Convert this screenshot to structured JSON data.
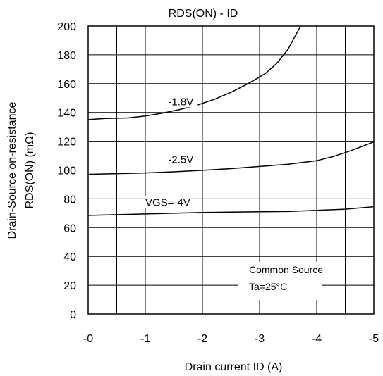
{
  "chart_data": {
    "type": "line",
    "title": "RDS(ON) - ID",
    "xlabel": "Drain current ID (A)",
    "ylabel_line1": "Drain-Source on-resistance",
    "ylabel_line2": "RDS(ON) (mΩ)",
    "xlim": [
      0,
      -5
    ],
    "ylim": [
      0,
      200
    ],
    "x_ticks": [
      0,
      -0.5,
      -1,
      -1.5,
      -2,
      -2.5,
      -3,
      -3.5,
      -4,
      -4.5,
      -5
    ],
    "x_tick_labels": [
      "-0",
      "",
      "-1",
      "",
      "-2",
      "",
      "-3",
      "",
      "-4",
      "",
      "-5"
    ],
    "y_ticks": [
      0,
      20,
      40,
      60,
      80,
      100,
      120,
      140,
      160,
      180,
      200
    ],
    "y_tick_labels": [
      "0",
      "20",
      "40",
      "60",
      "80",
      "100",
      "120",
      "140",
      "160",
      "180",
      "200"
    ],
    "grid": true,
    "series": [
      {
        "name": "-1.8V",
        "label_at": [
          -1.4,
          145
        ],
        "x": [
          0,
          -0.3,
          -0.7,
          -1.0,
          -1.3,
          -1.6,
          -1.9,
          -2.2,
          -2.5,
          -2.8,
          -3.1,
          -3.3,
          -3.5,
          -3.65,
          -3.72
        ],
        "y": [
          135,
          135.8,
          136.2,
          137.5,
          139.5,
          142,
          145,
          149,
          154,
          160,
          167,
          174,
          184,
          195,
          200
        ]
      },
      {
        "name": "-2.5V",
        "label_at": [
          -1.4,
          105
        ],
        "x": [
          0,
          -0.5,
          -1.0,
          -1.5,
          -2.0,
          -2.5,
          -3.0,
          -3.5,
          -4.0,
          -4.3,
          -4.6,
          -5.0
        ],
        "y": [
          97,
          97.5,
          98,
          98.8,
          99.8,
          101,
          102.5,
          104,
          106.5,
          109.5,
          113.5,
          119.5
        ]
      },
      {
        "name": "VGS=-4V",
        "label_at": [
          -1.0,
          75
        ],
        "x": [
          0,
          -1.0,
          -2.0,
          -3.0,
          -3.5,
          -4.0,
          -4.5,
          -5.0
        ],
        "y": [
          68.5,
          69.5,
          70.5,
          71,
          71.2,
          72,
          72.8,
          74.5
        ]
      }
    ],
    "annotation": {
      "lines": [
        "Common Source",
        "Ta=25°C"
      ]
    }
  }
}
